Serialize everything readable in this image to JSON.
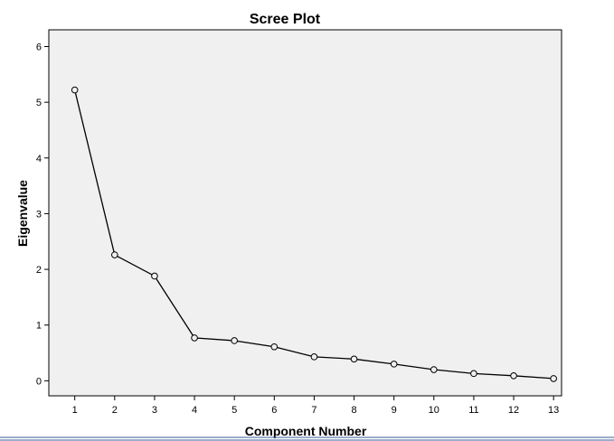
{
  "chart_data": {
    "type": "line",
    "title": "Scree Plot",
    "xlabel": "Component Number",
    "ylabel": "Eigenvalue",
    "x": [
      1,
      2,
      3,
      4,
      5,
      6,
      7,
      8,
      9,
      10,
      11,
      12,
      13
    ],
    "x_tick_labels": [
      "1",
      "2",
      "3",
      "4",
      "5",
      "6",
      "7",
      "8",
      "9",
      "10",
      "11",
      "12",
      "13"
    ],
    "y_ticks": [
      0,
      1,
      2,
      3,
      4,
      5,
      6
    ],
    "y_tick_labels": [
      "0",
      "1",
      "2",
      "3",
      "4",
      "5",
      "6"
    ],
    "series": [
      {
        "values": [
          5.22,
          2.26,
          1.88,
          0.77,
          0.72,
          0.61,
          0.43,
          0.39,
          0.3,
          0.2,
          0.13,
          0.09,
          0.04
        ]
      }
    ],
    "xlim": [
      0.35,
      13.2
    ],
    "ylim": [
      -0.27,
      6.3
    ],
    "grid": false,
    "legend": "none",
    "colors": {
      "plot_background": "#f0f0f0",
      "line": "#000000",
      "marker_fill": "#f0f0f0",
      "page_rule": "#3a5b9a"
    }
  }
}
